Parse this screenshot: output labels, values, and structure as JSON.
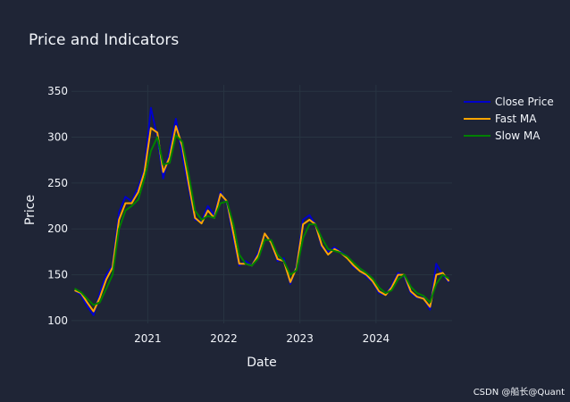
{
  "chart_data": {
    "type": "line",
    "title": "Price and Indicators",
    "xlabel": "Date",
    "ylabel": "Price",
    "x_ticks": [
      "2021",
      "2022",
      "2023",
      "2024"
    ],
    "y_ticks": [
      "100",
      "150",
      "200",
      "250",
      "300",
      "350"
    ],
    "xlim": [
      "2020-01-01",
      "2024-12-31"
    ],
    "ylim": [
      97,
      357
    ],
    "grid": true,
    "legend_position": "top-right",
    "x": [
      "2020-01",
      "2020-02",
      "2020-03",
      "2020-04",
      "2020-05",
      "2020-06",
      "2020-07",
      "2020-08",
      "2020-09",
      "2020-10",
      "2020-11",
      "2020-12",
      "2021-01",
      "2021-02",
      "2021-03",
      "2021-04",
      "2021-05",
      "2021-06",
      "2021-07",
      "2021-08",
      "2021-09",
      "2021-10",
      "2021-11",
      "2021-12",
      "2022-01",
      "2022-02",
      "2022-03",
      "2022-04",
      "2022-05",
      "2022-06",
      "2022-07",
      "2022-08",
      "2022-09",
      "2022-10",
      "2022-11",
      "2022-12",
      "2023-01",
      "2023-02",
      "2023-03",
      "2023-04",
      "2023-05",
      "2023-06",
      "2023-07",
      "2023-08",
      "2023-09",
      "2023-10",
      "2023-11",
      "2023-12",
      "2024-01",
      "2024-02",
      "2024-03",
      "2024-04",
      "2024-05",
      "2024-06",
      "2024-07",
      "2024-08",
      "2024-09",
      "2024-10",
      "2024-11",
      "2024-12"
    ],
    "series": [
      {
        "name": "Close Price",
        "color": "#0000cc",
        "values": [
          133,
          128,
          116,
          106,
          130,
          150,
          160,
          218,
          235,
          230,
          245,
          265,
          332,
          300,
          255,
          285,
          320,
          280,
          245,
          210,
          208,
          225,
          215,
          240,
          228,
          190,
          160,
          165,
          160,
          175,
          195,
          185,
          165,
          168,
          140,
          160,
          210,
          215,
          205,
          180,
          175,
          180,
          175,
          170,
          158,
          155,
          148,
          142,
          130,
          128,
          138,
          152,
          148,
          130,
          125,
          125,
          112,
          162,
          150,
          142
        ]
      },
      {
        "name": "Fast MA",
        "color": "#ffa500",
        "values": [
          133,
          130,
          120,
          110,
          125,
          145,
          158,
          210,
          228,
          228,
          240,
          262,
          310,
          305,
          262,
          278,
          312,
          290,
          250,
          212,
          206,
          220,
          212,
          238,
          230,
          195,
          162,
          162,
          160,
          172,
          195,
          185,
          167,
          165,
          142,
          158,
          205,
          210,
          205,
          182,
          172,
          178,
          174,
          168,
          160,
          154,
          150,
          143,
          132,
          128,
          136,
          150,
          150,
          132,
          126,
          124,
          115,
          150,
          152,
          143
        ]
      },
      {
        "name": "Slow MA",
        "color": "#008000",
        "values": [
          135,
          131,
          124,
          117,
          120,
          135,
          150,
          200,
          220,
          225,
          232,
          255,
          285,
          300,
          270,
          272,
          302,
          295,
          260,
          220,
          210,
          214,
          212,
          228,
          230,
          205,
          172,
          162,
          160,
          168,
          188,
          188,
          172,
          165,
          150,
          155,
          190,
          205,
          205,
          190,
          178,
          176,
          174,
          170,
          163,
          157,
          152,
          146,
          136,
          130,
          133,
          145,
          150,
          137,
          130,
          127,
          120,
          140,
          150,
          146
        ]
      }
    ]
  },
  "watermark": "CSDN @船长@Quant"
}
